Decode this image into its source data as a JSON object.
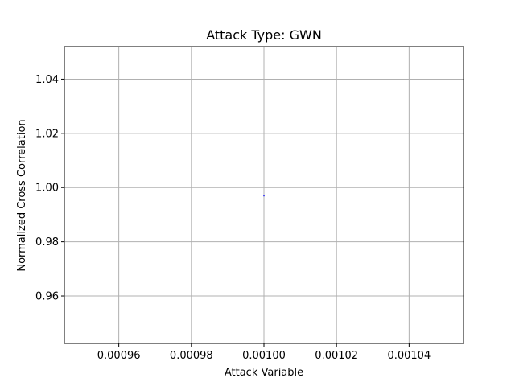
{
  "chart_data": {
    "type": "scatter",
    "title": "Attack Type: GWN",
    "xlabel": "Attack Variable",
    "ylabel": "Normalized Cross Correlation",
    "xlim": [
      0.000945,
      0.001055
    ],
    "ylim": [
      0.9425,
      1.052
    ],
    "x_ticks": [
      0.00096,
      0.00098,
      0.001,
      0.00102,
      0.00104
    ],
    "x_tick_labels": [
      "0.00096",
      "0.00098",
      "0.00100",
      "0.00102",
      "0.00104"
    ],
    "y_ticks": [
      0.96,
      0.98,
      1.0,
      1.02,
      1.04
    ],
    "y_tick_labels": [
      "0.96",
      "0.98",
      "1.00",
      "1.02",
      "1.04"
    ],
    "grid": true,
    "series": [
      {
        "x": [
          0.001
        ],
        "y": [
          0.997
        ],
        "color": "#0000ff"
      }
    ]
  }
}
